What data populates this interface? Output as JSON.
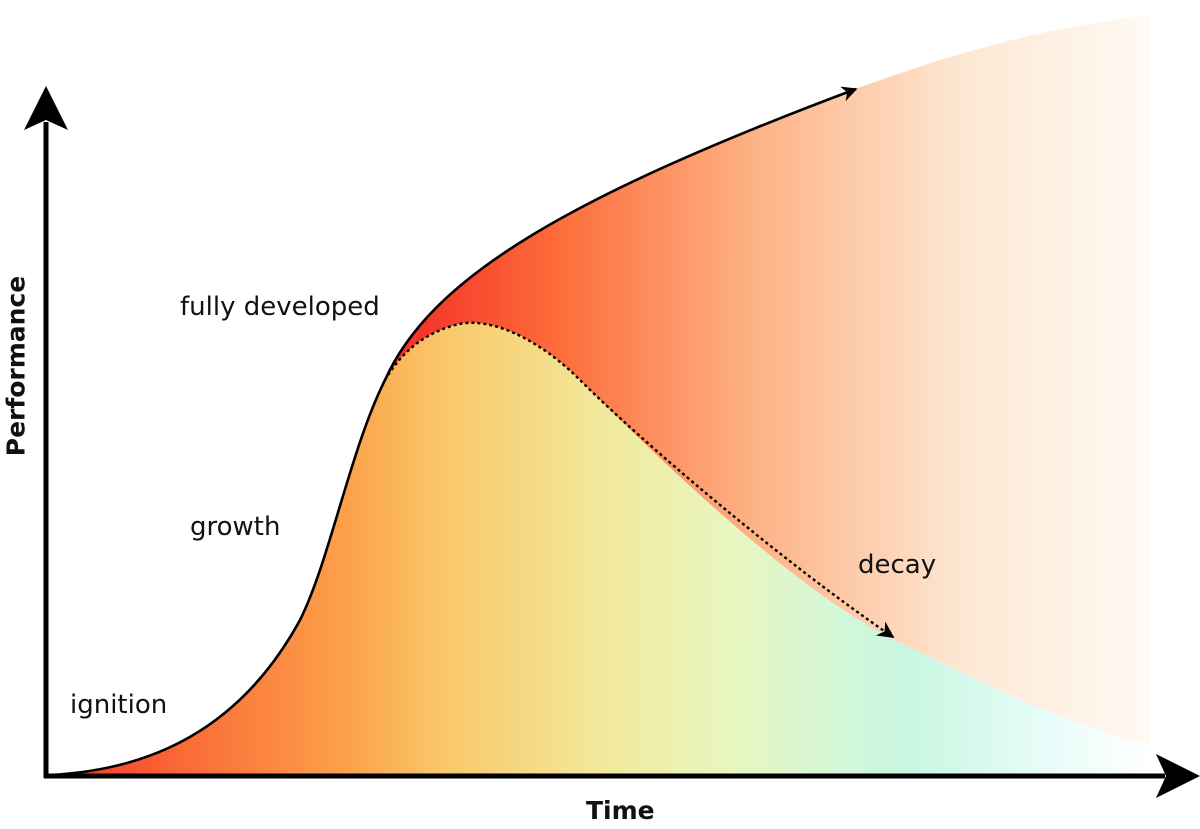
{
  "axes": {
    "x_label": "Time",
    "y_label": "Performance"
  },
  "stages": {
    "ignition": "ignition",
    "growth": "growth",
    "fully_developed": "fully developed",
    "decay": "decay"
  },
  "colors": {
    "axis": "#000000",
    "curve": "#000000",
    "hot_red": "#f4362a",
    "orange": "#fca14a",
    "yellow": "#f2e89a",
    "mint": "#cbf6e2",
    "peach": "#fde8d4",
    "label_text": "#111111"
  }
}
